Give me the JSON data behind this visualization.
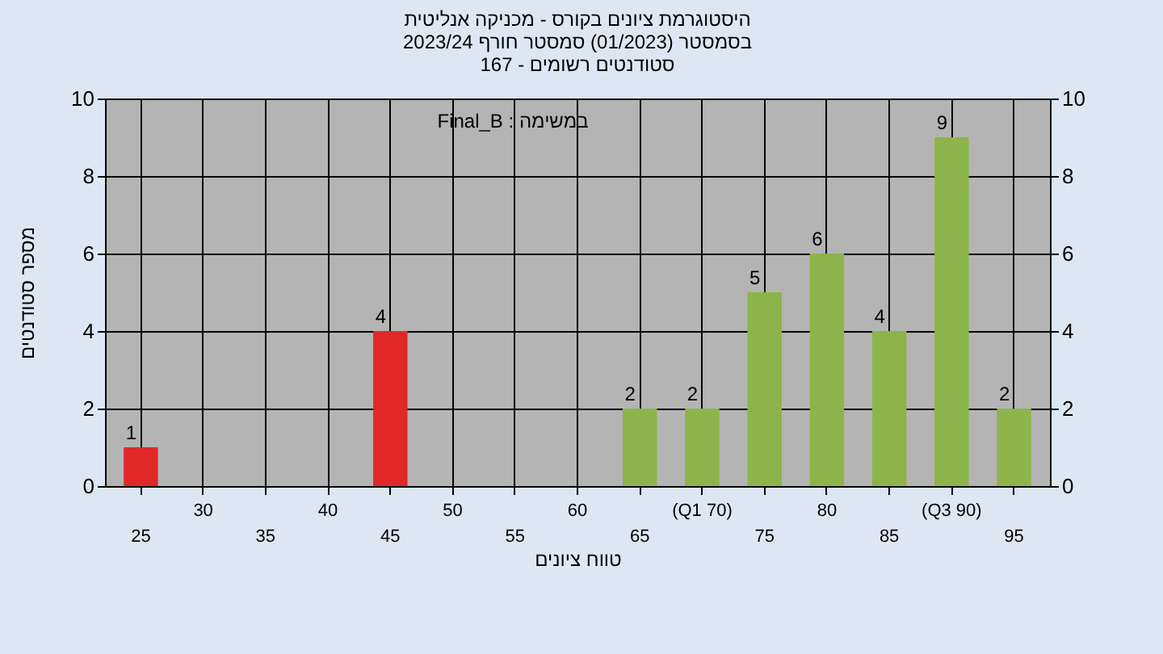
{
  "chart_data": {
    "type": "bar",
    "title": [
      "היסטוגרמת ציונים בקורס - מכניקה אנליטית",
      "בסמסטר  (01/2023)  סמסטר חורף 2023/24",
      "סטודנטים רשומים - 167"
    ],
    "xlabel": "טווח ציונים",
    "ylabel": "מספר סטודנטים",
    "annotations": [
      "Final_B : במשימה"
    ],
    "categories": [
      "25",
      "30",
      "35",
      "40",
      "45",
      "50",
      "55",
      "60",
      "65",
      "(Q1 70)",
      "75",
      "80",
      "85",
      "(Q3 90)",
      "95"
    ],
    "colors": [
      "#e02828",
      "#8db44a",
      "#8db44a",
      "#8db44a",
      "#e02828",
      "#8db44a",
      "#8db44a",
      "#8db44a",
      "#8db44a",
      "#8db44a",
      "#8db44a",
      "#8db44a",
      "#8db44a",
      "#8db44a",
      "#8db44a"
    ],
    "values": [
      1,
      0,
      0,
      0,
      4,
      0,
      0,
      0,
      2,
      2,
      5,
      6,
      4,
      9,
      2
    ],
    "value_labels": [
      "1",
      null,
      null,
      null,
      "4",
      null,
      null,
      null,
      "2",
      "2",
      "5",
      "6",
      "4",
      "9",
      "2"
    ],
    "ylim": [
      0,
      10
    ],
    "yticks": [
      0,
      2,
      4,
      6,
      8,
      10
    ],
    "y2lim": [
      0,
      10
    ],
    "y2ticks": [
      0,
      2,
      4,
      6,
      8,
      10
    ],
    "grid": true
  }
}
